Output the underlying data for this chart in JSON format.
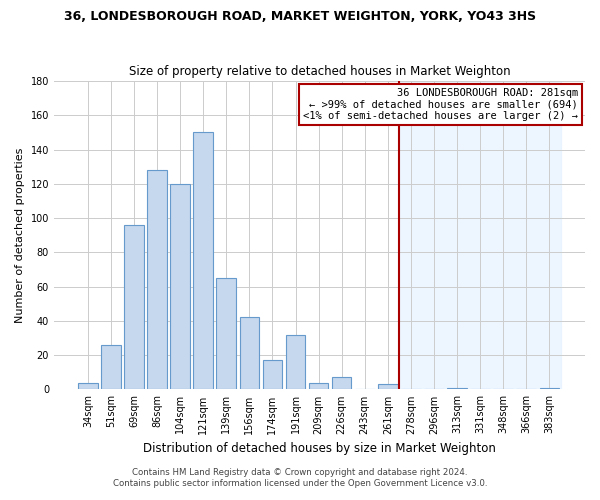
{
  "title": "36, LONDESBOROUGH ROAD, MARKET WEIGHTON, YORK, YO43 3HS",
  "subtitle": "Size of property relative to detached houses in Market Weighton",
  "xlabel": "Distribution of detached houses by size in Market Weighton",
  "ylabel": "Number of detached properties",
  "bar_labels": [
    "34sqm",
    "51sqm",
    "69sqm",
    "86sqm",
    "104sqm",
    "121sqm",
    "139sqm",
    "156sqm",
    "174sqm",
    "191sqm",
    "209sqm",
    "226sqm",
    "243sqm",
    "261sqm",
    "278sqm",
    "296sqm",
    "313sqm",
    "331sqm",
    "348sqm",
    "366sqm",
    "383sqm"
  ],
  "bar_values": [
    4,
    26,
    96,
    128,
    120,
    150,
    65,
    42,
    17,
    32,
    4,
    7,
    0,
    3,
    0,
    0,
    1,
    0,
    0,
    0,
    1
  ],
  "bar_color": "#c5d8ed",
  "bar_edge_color": "#6699cc",
  "bar_color_right": "#deeaf7",
  "bar_edge_color_right": "#6699cc",
  "vline_x_index": 14,
  "vline_color": "#aa0000",
  "annotation_title": "36 LONDESBOROUGH ROAD: 281sqm",
  "annotation_line1": "← >99% of detached houses are smaller (694)",
  "annotation_line2": "<1% of semi-detached houses are larger (2) →",
  "annotation_box_edge": "#aa0000",
  "ylim": [
    0,
    180
  ],
  "yticks": [
    0,
    20,
    40,
    60,
    80,
    100,
    120,
    140,
    160,
    180
  ],
  "footnote1": "Contains HM Land Registry data © Crown copyright and database right 2024.",
  "footnote2": "Contains public sector information licensed under the Open Government Licence v3.0.",
  "bg_color": "#ffffff",
  "grid_color": "#cccccc"
}
